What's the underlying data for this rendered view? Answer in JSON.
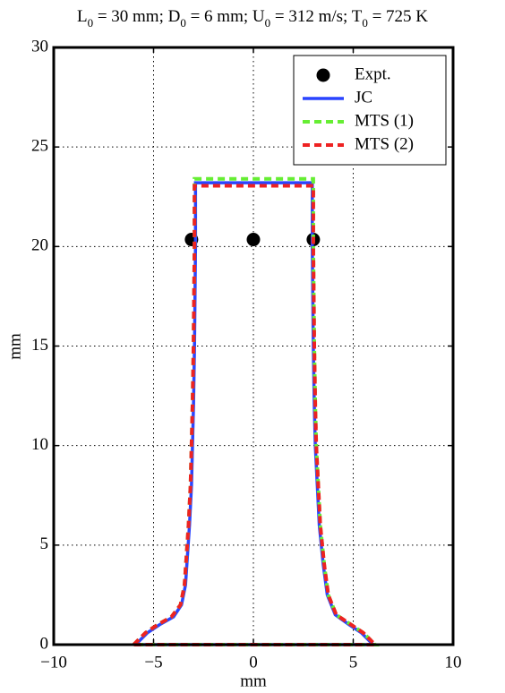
{
  "chart_data": {
    "type": "line",
    "title": [
      {
        "text": "L"
      },
      {
        "text": "0",
        "sub": true
      },
      {
        "text": " = 30 mm; D"
      },
      {
        "text": "0",
        "sub": true
      },
      {
        "text": " = 6 mm; U"
      },
      {
        "text": "0",
        "sub": true
      },
      {
        "text": " = 312 m/s; T"
      },
      {
        "text": "0",
        "sub": true
      },
      {
        "text": " = 725 K"
      }
    ],
    "xlabel": "mm",
    "ylabel": "mm",
    "xlim": [
      -10,
      10
    ],
    "ylim": [
      0,
      30
    ],
    "xticks": [
      {
        "value": -10,
        "label": "−10"
      },
      {
        "value": -5,
        "label": "−5"
      },
      0,
      5,
      10
    ],
    "yticks": [
      0,
      5,
      10,
      15,
      20,
      25,
      30
    ],
    "grid": true,
    "legend": "northeast",
    "series": [
      {
        "name": "Expt.",
        "color": "#000000",
        "style": "marker",
        "x": [
          -3.1,
          0,
          3.0
        ],
        "values": [
          20.35,
          20.35,
          20.35
        ]
      },
      {
        "name": "JC",
        "color": "#2a44ff",
        "style": "solid",
        "x": [
          -5.9,
          -5.3,
          -4.7,
          -4.0,
          -3.6,
          -3.4,
          -3.3,
          -3.2,
          -3.1,
          -3.05,
          -3.0,
          -2.95,
          -2.9,
          -2.9,
          2.95,
          2.95,
          3.0,
          3.05,
          3.1,
          3.2,
          3.3,
          3.5,
          3.7,
          4.1,
          4.8,
          5.4,
          6.0,
          -5.9
        ],
        "values": [
          0,
          0.6,
          1.0,
          1.4,
          2.0,
          3.0,
          4.5,
          6,
          8,
          10,
          12,
          15,
          20,
          23.2,
          23.2,
          20,
          15,
          12,
          10,
          8,
          6,
          4,
          2.5,
          1.5,
          1.0,
          0.6,
          0,
          0
        ]
      },
      {
        "name": "MTS (1)",
        "color": "#66ee33",
        "style": "dashed",
        "x": [
          -6.0,
          -5.4,
          -4.8,
          -4.1,
          -3.65,
          -3.45,
          -3.35,
          -3.25,
          -3.15,
          -3.1,
          -3.05,
          -3.0,
          -2.95,
          -2.95,
          3.0,
          3.0,
          3.05,
          3.1,
          3.15,
          3.25,
          3.35,
          3.55,
          3.75,
          4.15,
          4.9,
          5.5,
          6.1,
          -6.0
        ],
        "values": [
          0,
          0.6,
          1.0,
          1.4,
          2.0,
          3.0,
          4.5,
          6,
          8,
          10,
          12,
          15,
          20,
          23.4,
          23.4,
          20,
          15,
          12,
          10,
          8,
          6,
          4,
          2.5,
          1.5,
          1.0,
          0.6,
          0,
          0
        ]
      },
      {
        "name": "MTS (2)",
        "color": "#ee2222",
        "style": "dashed",
        "x": [
          -6.0,
          -5.4,
          -4.8,
          -4.1,
          -3.65,
          -3.45,
          -3.35,
          -3.25,
          -3.15,
          -3.1,
          -3.05,
          -3.0,
          -2.95,
          -2.95,
          3.0,
          3.0,
          3.05,
          3.1,
          3.15,
          3.25,
          3.35,
          3.55,
          3.75,
          4.15,
          4.9,
          5.5,
          6.1,
          -6.0
        ],
        "values": [
          0,
          0.6,
          1.0,
          1.4,
          2.0,
          3.0,
          4.5,
          6,
          8,
          10,
          12,
          15,
          20,
          23.05,
          23.05,
          20,
          15,
          12,
          10,
          8,
          6,
          4,
          2.5,
          1.5,
          1.0,
          0.6,
          0,
          0
        ]
      }
    ]
  }
}
